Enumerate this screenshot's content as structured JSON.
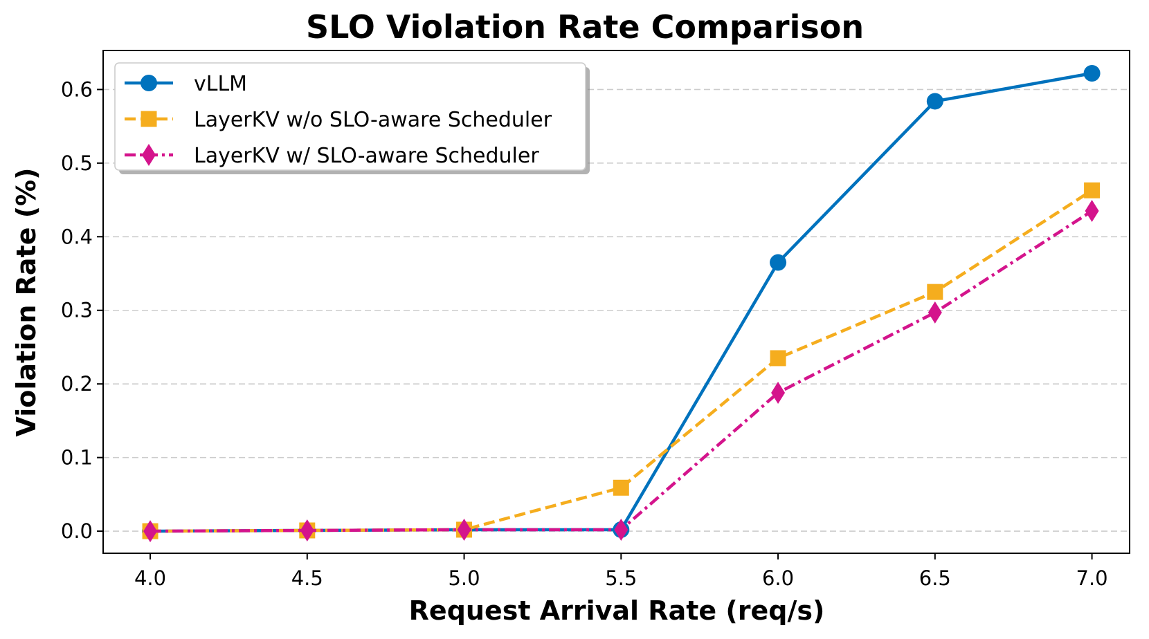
{
  "chart_data": {
    "type": "line",
    "title": "SLO Violation Rate Comparison",
    "xlabel": "Request Arrival Rate (req/s)",
    "ylabel": "Violation Rate (%)",
    "x": [
      4.0,
      4.5,
      5.0,
      5.5,
      6.0,
      6.5,
      7.0
    ],
    "xticks": [
      "4.0",
      "4.5",
      "5.0",
      "5.5",
      "6.0",
      "6.5",
      "7.0"
    ],
    "yticks": [
      "0.0",
      "0.1",
      "0.2",
      "0.3",
      "0.4",
      "0.5",
      "0.6"
    ],
    "xlim": [
      3.85,
      7.12
    ],
    "ylim": [
      -0.03,
      0.653
    ],
    "grid": "y-dashed",
    "legend_position": "top-left",
    "series": [
      {
        "name": "vLLM",
        "values": [
          0.0,
          0.001,
          0.002,
          0.002,
          0.365,
          0.584,
          0.622
        ],
        "color": "#0072BD",
        "marker": "circle",
        "linestyle": "solid"
      },
      {
        "name": "LayerKV w/o SLO-aware Scheduler",
        "values": [
          0.0,
          0.001,
          0.002,
          0.059,
          0.235,
          0.325,
          0.463
        ],
        "color": "#F5AD1E",
        "marker": "square",
        "linestyle": "dashed"
      },
      {
        "name": "LayerKV w/ SLO-aware Scheduler",
        "values": [
          0.0,
          0.001,
          0.002,
          0.002,
          0.188,
          0.297,
          0.435
        ],
        "color": "#D4148C",
        "marker": "diamond",
        "linestyle": "dashdot"
      }
    ]
  }
}
